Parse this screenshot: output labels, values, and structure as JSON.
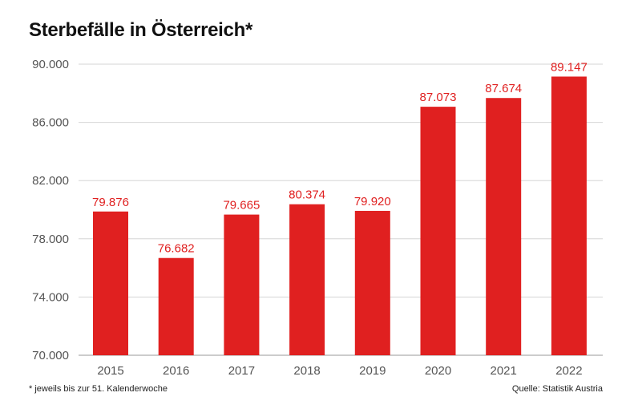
{
  "chart_data": {
    "type": "bar",
    "title": "Sterbefälle in Österreich*",
    "categories": [
      "2015",
      "2016",
      "2017",
      "2018",
      "2019",
      "2020",
      "2021",
      "2022"
    ],
    "values": [
      79876,
      76682,
      79665,
      80374,
      79920,
      87073,
      87674,
      89147
    ],
    "data_labels": [
      "79.876",
      "76.682",
      "79.665",
      "80.374",
      "79.920",
      "87.073",
      "87.674",
      "89.147"
    ],
    "yticks": [
      70000,
      74000,
      78000,
      82000,
      86000,
      90000
    ],
    "ytick_labels": [
      "70.000",
      "74.000",
      "78.000",
      "82.000",
      "86.000",
      "90.000"
    ],
    "ylim": [
      70000,
      90000
    ],
    "xlabel": "",
    "ylabel": "",
    "grid": true,
    "bar_color": "#e02020"
  },
  "footnote": "* jeweils bis zur 51. Kalenderwoche",
  "source": "Quelle: Statistik Austria"
}
